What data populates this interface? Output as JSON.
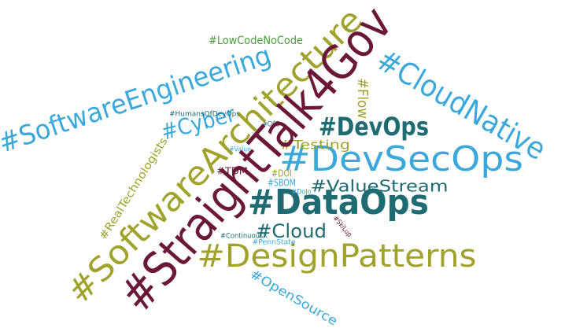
{
  "words": [
    {
      "text": "#StraightTalk4Gov",
      "color": "#6b1838"
    },
    {
      "text": "#SoftwareArchitecture",
      "color": "#a0a22c"
    },
    {
      "text": "#SoftwareEngineering",
      "color": "#3aa8db"
    },
    {
      "text": "#CloudNative",
      "color": "#3aa8db"
    },
    {
      "text": "#DevSecOps",
      "color": "#3aa8db"
    },
    {
      "text": "#DataOps",
      "color": "#1f6b72"
    },
    {
      "text": "#DevOps",
      "color": "#1f6b72"
    },
    {
      "text": "#DesignPatterns",
      "color": "#a0a22c"
    },
    {
      "text": "#ValueStream",
      "color": "#1f6b72"
    },
    {
      "text": "#Cyber",
      "color": "#3aa8db"
    },
    {
      "text": "#Testing",
      "color": "#a0a22c"
    },
    {
      "text": "#Cloud",
      "color": "#1f6b72"
    },
    {
      "text": "#Flow",
      "color": "#a0a22c"
    },
    {
      "text": "#LowCodeNoCode",
      "color": "#4c9a3f"
    },
    {
      "text": "#HumansOfDevOps",
      "color": "#1f6b72"
    },
    {
      "text": "#CICD",
      "color": "#1f6b72"
    },
    {
      "text": "#Value",
      "color": "#3aa8db"
    },
    {
      "text": "#RealTechnologists",
      "color": "#a0a22c"
    },
    {
      "text": "#TDM",
      "color": "#6b1838"
    },
    {
      "text": "#DOI",
      "color": "#a0a22c"
    },
    {
      "text": "#SBOM",
      "color": "#3aa8db"
    },
    {
      "text": "#DoJo",
      "color": "#3aa8db"
    },
    {
      "text": "#ContinuousX",
      "color": "#1f6b72"
    },
    {
      "text": "#PennState",
      "color": "#3aa8db"
    },
    {
      "text": "#SkiLup",
      "color": "#6b1838"
    },
    {
      "text": "#OpenSource",
      "color": "#3aa8db"
    }
  ]
}
